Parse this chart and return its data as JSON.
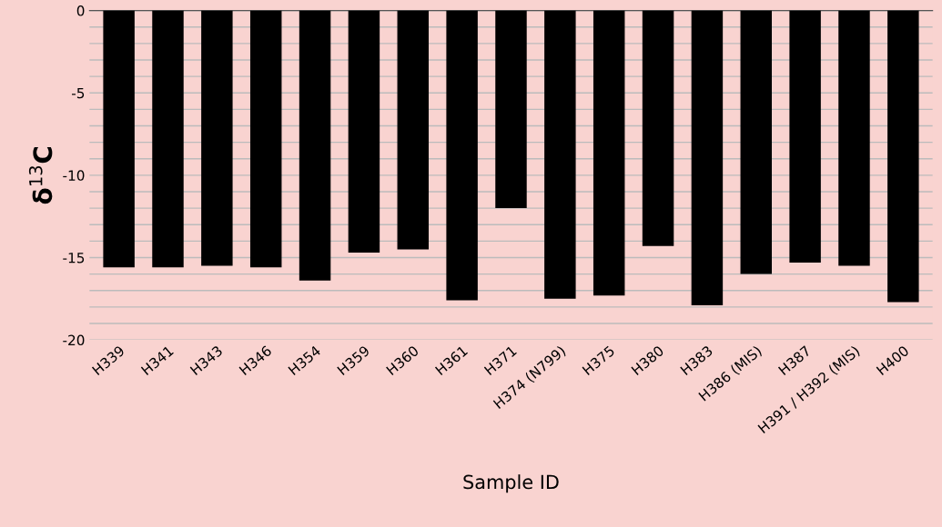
{
  "chart_data": {
    "type": "bar",
    "categories": [
      "H339",
      "H341",
      "H343",
      "H346",
      "H354",
      "H359",
      "H360",
      "H361",
      "H371",
      "H374 (N799)",
      "H375",
      "H380",
      "H383",
      "H386 (MIS)",
      "H387",
      "H391 / H392 (MIS)",
      "H400"
    ],
    "values": [
      -15.6,
      -15.6,
      -15.5,
      -15.6,
      -16.4,
      -14.7,
      -14.5,
      -17.6,
      -12.0,
      -17.5,
      -17.3,
      -14.3,
      -17.9,
      -16.0,
      -15.3,
      -15.5,
      -17.7
    ],
    "color": "#000000",
    "xlabel": "Sample ID",
    "ylabel": "δ$^{13}$C",
    "ylim": [
      -20,
      0
    ],
    "yticks": [
      -20,
      {
        "value": -19,
        "label": null
      },
      {
        "value": -18,
        "label": null
      },
      {
        "value": -17,
        "label": null
      },
      {
        "value": -16,
        "label": null
      },
      -15,
      {
        "value": -14,
        "label": null
      },
      {
        "value": -13,
        "label": null
      },
      {
        "value": -12,
        "label": null
      },
      {
        "value": -11,
        "label": null
      },
      -10,
      {
        "value": -9,
        "label": null
      },
      {
        "value": -8,
        "label": null
      },
      {
        "value": -7,
        "label": null
      },
      {
        "value": -6,
        "label": null
      },
      -5,
      {
        "value": -4,
        "label": null
      },
      {
        "value": -3,
        "label": null
      },
      {
        "value": -2,
        "label": null
      },
      {
        "value": -1,
        "label": null
      },
      0
    ],
    "grid": "y"
  }
}
